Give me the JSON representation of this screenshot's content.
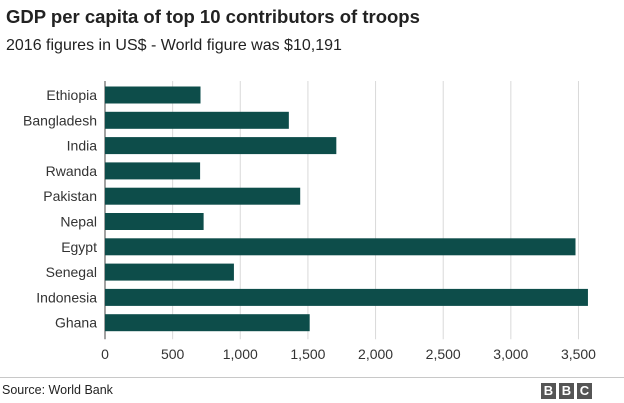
{
  "title": "GDP per capita of top 10 contributors of troops",
  "subtitle": "2016 figures in US$ - World figure was $10,191",
  "source": "Source: World Bank",
  "logo_letters": [
    "B",
    "B",
    "C"
  ],
  "chart_data": {
    "type": "bar",
    "orientation": "horizontal",
    "categories": [
      "Ethiopia",
      "Bangladesh",
      "India",
      "Rwanda",
      "Pakistan",
      "Nepal",
      "Egypt",
      "Senegal",
      "Indonesia",
      "Ghana"
    ],
    "values": [
      706,
      1359,
      1710,
      703,
      1443,
      729,
      3478,
      953,
      3570,
      1513
    ],
    "xlim": [
      0,
      3600
    ],
    "xticks": [
      0,
      500,
      1000,
      1500,
      2000,
      2500,
      3000,
      3500
    ],
    "xtick_labels": [
      "0",
      "500",
      "1,000",
      "1,500",
      "2,000",
      "2,500",
      "3,000",
      "3,500"
    ],
    "grid": "vertical",
    "bar_color": "#0d4d4a",
    "grid_color": "#d9d9d9"
  }
}
